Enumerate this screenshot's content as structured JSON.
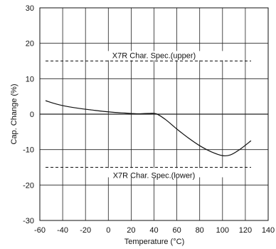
{
  "chart_data": {
    "type": "line",
    "title": "",
    "xlabel": "Temperature (°C)",
    "ylabel": "Cap. Change (%)",
    "xlim": [
      -60,
      140
    ],
    "ylim": [
      -30,
      30
    ],
    "x_ticks": [
      -60,
      -40,
      -20,
      0,
      20,
      40,
      60,
      80,
      100,
      120,
      140
    ],
    "y_ticks": [
      30,
      20,
      10,
      0,
      -10,
      -20,
      -30
    ],
    "x_tick_labels": [
      "-60",
      "-40",
      "-20",
      "0",
      "20",
      "40",
      "60",
      "80",
      "100",
      "120",
      "140"
    ],
    "y_tick_labels": [
      "30",
      "20",
      "10",
      "0",
      "-10",
      "-20",
      "-30"
    ],
    "grid": true,
    "legend": "none",
    "series": [
      {
        "x": [
          -55,
          -45,
          -35,
          -25,
          -15,
          -5,
          5,
          15,
          25,
          35,
          42,
          50,
          60,
          70,
          80,
          90,
          100,
          107,
          115,
          125
        ],
        "y": [
          3.8,
          2.8,
          2.1,
          1.6,
          1.2,
          0.8,
          0.5,
          0.3,
          0.1,
          0.2,
          0.1,
          -1.5,
          -4.2,
          -6.7,
          -8.9,
          -10.6,
          -11.7,
          -11.5,
          -10.0,
          -7.5
        ],
        "color": "#111111"
      }
    ],
    "reference_lines": [
      {
        "label": "X7R Char. Spec.(upper)",
        "y": 15,
        "x_range": [
          -55,
          125
        ],
        "style": "dashed"
      },
      {
        "label": "X7R Char. Spec.(lower)",
        "y": -15,
        "x_range": [
          -55,
          125
        ],
        "style": "dashed"
      }
    ]
  }
}
